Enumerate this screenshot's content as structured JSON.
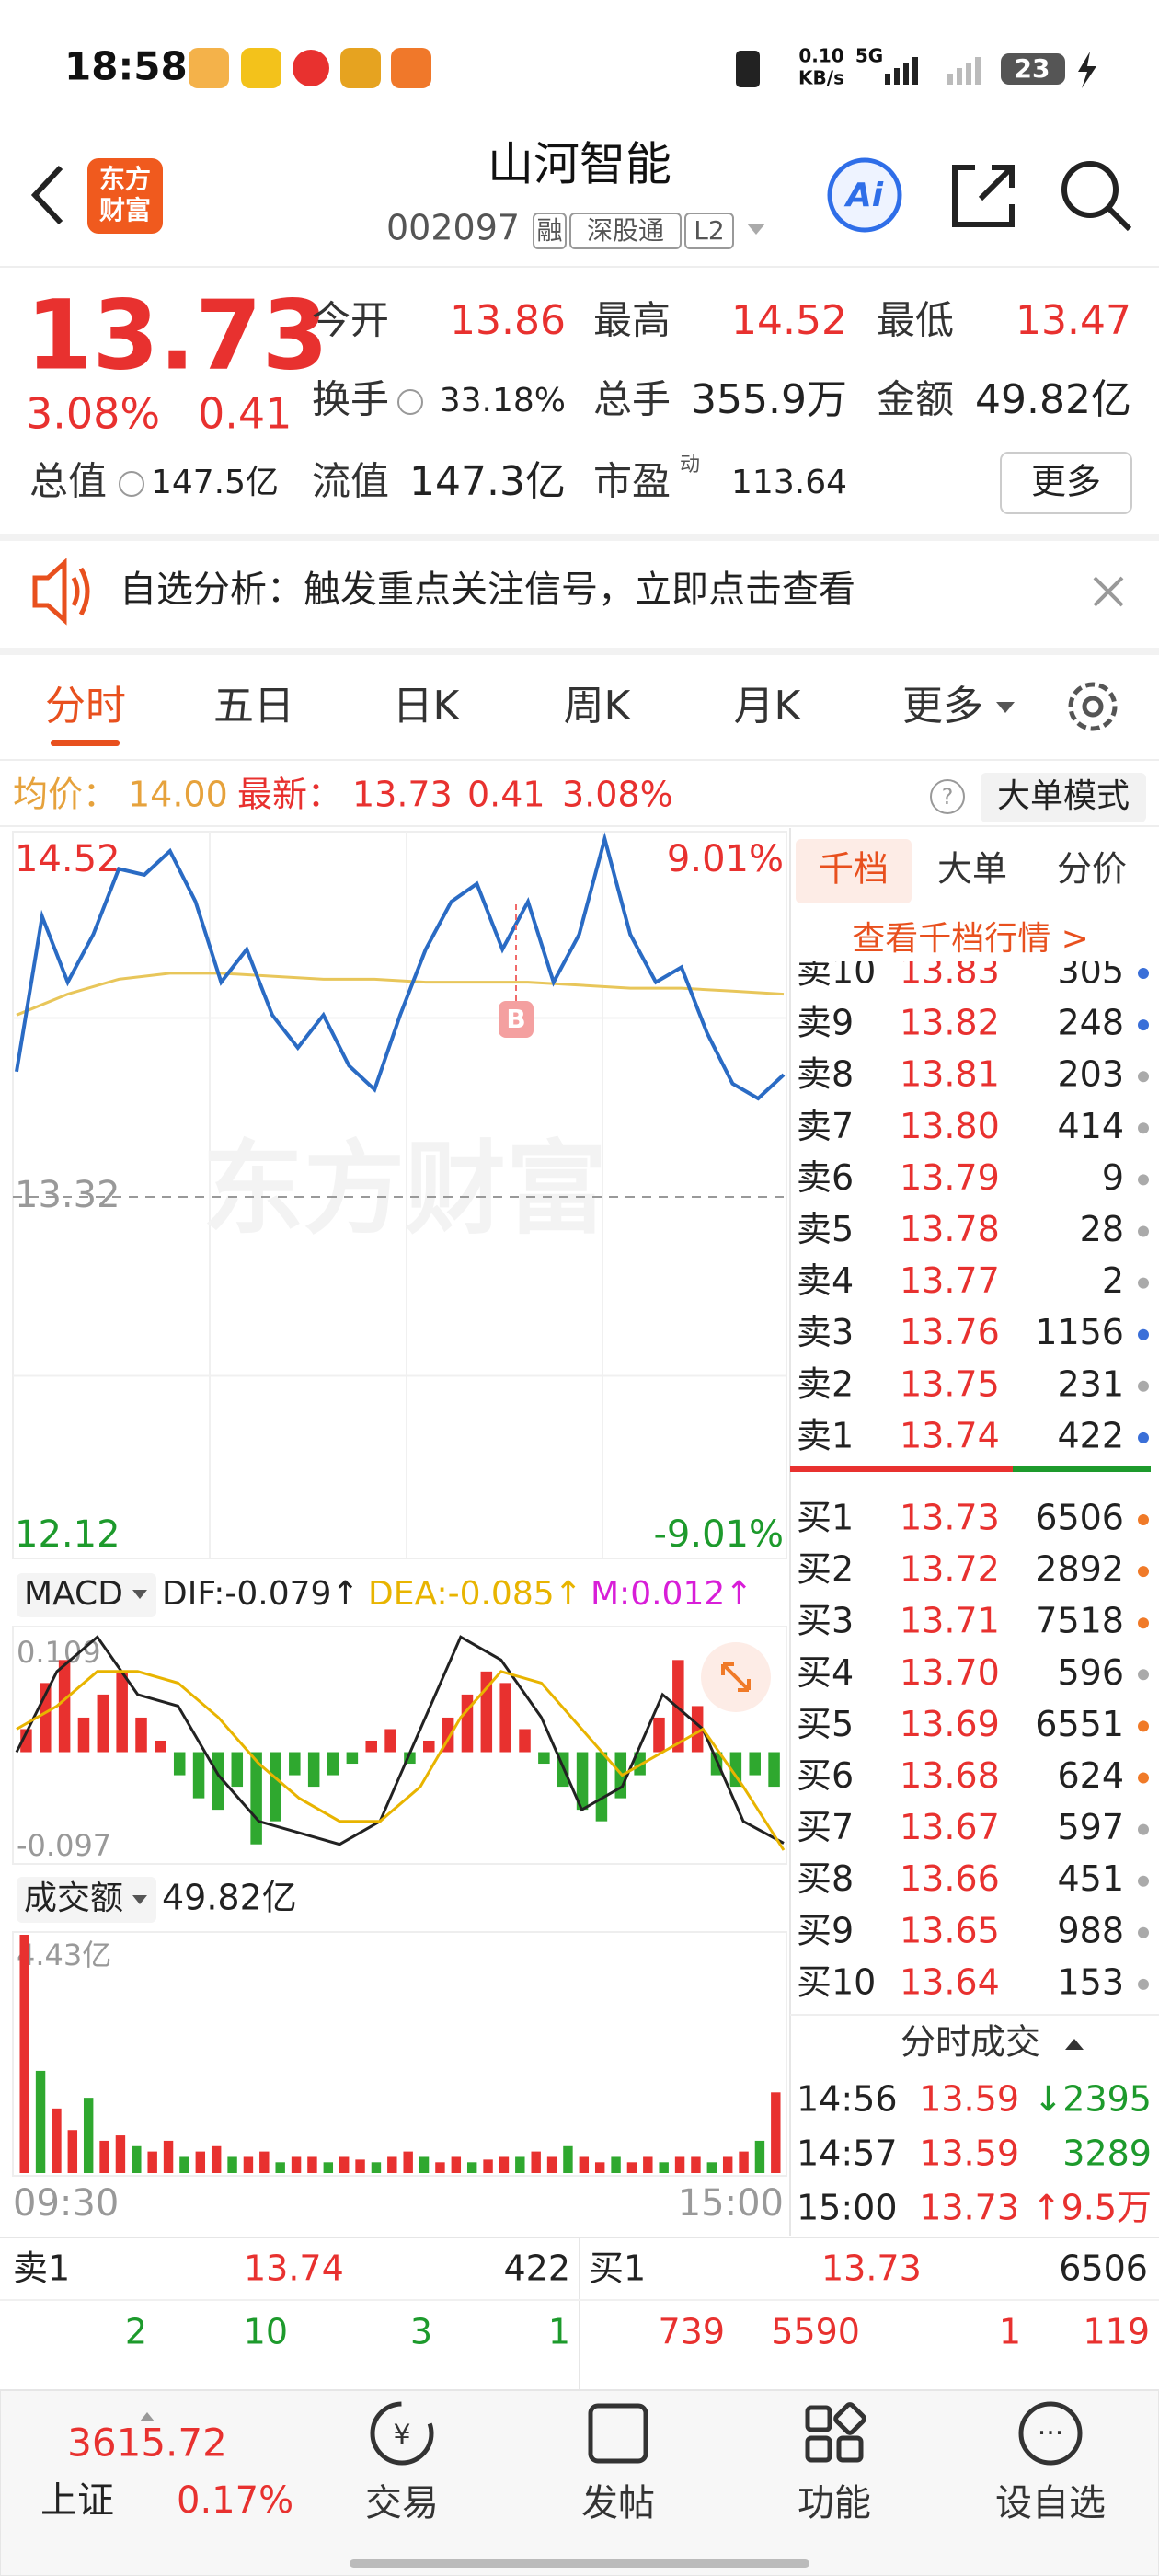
{
  "status_bar": {
    "time": "18:58",
    "net_speed": "0.10",
    "net_unit": "KB/s",
    "network": "5G",
    "battery": "23"
  },
  "header": {
    "logo_top": "东方",
    "logo_bottom": "财富",
    "title": "山河智能",
    "code": "002097",
    "tags": [
      "融",
      "深股通",
      "L2"
    ],
    "ai": "Ai"
  },
  "quote": {
    "price": "13.73",
    "change_pct": "3.08%",
    "change": "0.41",
    "color": "#e8312f",
    "fields": [
      {
        "label": "今开",
        "value": "13.86",
        "color": "#e8312f"
      },
      {
        "label": "最高",
        "value": "14.52",
        "color": "#e8312f"
      },
      {
        "label": "最低",
        "value": "13.47",
        "color": "#e8312f"
      },
      {
        "label": "换手",
        "value": "33.18%"
      },
      {
        "label": "总手",
        "value": "355.9万"
      },
      {
        "label": "金额",
        "value": "49.82亿"
      },
      {
        "label": "总值",
        "value": "147.5亿"
      },
      {
        "label": "流值",
        "value": "147.3亿"
      },
      {
        "label": "市盈",
        "sup": "动",
        "value": "113.64"
      }
    ],
    "more": "更多"
  },
  "banner": "自选分析：触发重点关注信号，立即点击查看",
  "tabs": {
    "items": [
      "分时",
      "五日",
      "日K",
      "周K",
      "月K",
      "更多"
    ],
    "active": 0
  },
  "info": {
    "avg_label": "均价：",
    "avg": "14.00",
    "last_label": "最新：",
    "last": "13.73",
    "change": "0.41",
    "change_pct": "3.08%",
    "mode": "大单模式"
  },
  "price_chart": {
    "ylim": [
      12.12,
      14.52
    ],
    "yticks": [
      12.12,
      13.32,
      14.52
    ],
    "pct_top": "9.01%",
    "pct_bottom": "-9.01%",
    "watermark": "东方财富",
    "marker": "B",
    "line_color": "#2a6bc4",
    "avg_color": "#e8c65a",
    "prices": [
      13.74,
      14.26,
      14.04,
      14.2,
      14.42,
      14.4,
      14.48,
      14.31,
      14.04,
      14.15,
      13.93,
      13.82,
      13.93,
      13.76,
      13.68,
      13.93,
      14.15,
      14.31,
      14.37,
      14.15,
      14.31,
      14.04,
      14.2,
      14.52,
      14.2,
      14.04,
      14.09,
      13.87,
      13.7,
      13.65,
      13.73
    ],
    "avg": [
      13.93,
      14.0,
      14.05,
      14.07,
      14.07,
      14.06,
      14.05,
      14.05,
      14.04,
      14.04,
      14.04,
      14.03,
      14.02,
      14.02,
      14.01,
      14.0
    ],
    "x_start": "09:30",
    "x_end": "15:00"
  },
  "macd": {
    "label": "MACD",
    "dif": "DIF:-0.079↑",
    "dea": "DEA:-0.085↑",
    "m": "M:0.012↑",
    "ylim": [
      -0.097,
      0.109
    ],
    "dif_color": "#222222",
    "dea_color": "#e8b400",
    "m_color": "#d81ed8",
    "hist": [
      0.02,
      0.06,
      0.08,
      0.03,
      0.05,
      0.07,
      0.03,
      0.01,
      -0.02,
      -0.04,
      -0.05,
      -0.03,
      -0.08,
      -0.06,
      -0.02,
      -0.03,
      -0.02,
      -0.01,
      0.01,
      0.02,
      -0.01,
      0.01,
      0.03,
      0.05,
      0.07,
      0.06,
      0.02,
      -0.01,
      -0.03,
      -0.05,
      -0.06,
      -0.04,
      -0.02,
      0.03,
      0.08,
      0.04,
      -0.02,
      -0.03,
      -0.02,
      -0.03
    ],
    "dif_line": [
      0.0,
      0.07,
      0.1,
      0.05,
      0.04,
      -0.02,
      -0.06,
      -0.07,
      -0.08,
      -0.06,
      0.02,
      0.1,
      0.08,
      0.03,
      -0.05,
      -0.03,
      0.05,
      0.02,
      -0.06,
      -0.079
    ],
    "dea_line": [
      0.02,
      0.04,
      0.07,
      0.07,
      0.06,
      0.03,
      -0.01,
      -0.04,
      -0.06,
      -0.06,
      -0.03,
      0.03,
      0.07,
      0.06,
      0.02,
      -0.02,
      0.0,
      0.02,
      -0.03,
      -0.085
    ]
  },
  "volume": {
    "label": "成交额",
    "total": "49.82亿",
    "ylim": [
      0,
      4.43
    ],
    "top_label": "4.43亿",
    "bars": [
      4.43,
      1.9,
      1.2,
      0.8,
      1.4,
      0.6,
      0.7,
      0.5,
      0.4,
      0.6,
      0.3,
      0.4,
      0.5,
      0.3,
      0.3,
      0.4,
      0.2,
      0.3,
      0.3,
      0.2,
      0.3,
      0.25,
      0.2,
      0.3,
      0.4,
      0.3,
      0.2,
      0.3,
      0.2,
      0.25,
      0.3,
      0.3,
      0.4,
      0.3,
      0.5,
      0.3,
      0.2,
      0.3,
      0.2,
      0.3,
      0.2,
      0.3,
      0.3,
      0.2,
      0.3,
      0.4,
      0.6,
      1.5
    ]
  },
  "order_book": {
    "tabs": [
      "千档",
      "大单",
      "分价"
    ],
    "link": "查看千档行情 >",
    "asks": [
      {
        "level": "卖10",
        "price": "13.83",
        "volume": "305",
        "dot": "#3a6fd8"
      },
      {
        "level": "卖9",
        "price": "13.82",
        "volume": "248",
        "dot": "#3a6fd8"
      },
      {
        "level": "卖8",
        "price": "13.81",
        "volume": "203",
        "dot": "#aaaaaa"
      },
      {
        "level": "卖7",
        "price": "13.80",
        "volume": "414",
        "dot": "#aaaaaa"
      },
      {
        "level": "卖6",
        "price": "13.79",
        "volume": "9",
        "dot": "#aaaaaa"
      },
      {
        "level": "卖5",
        "price": "13.78",
        "volume": "28",
        "dot": "#aaaaaa"
      },
      {
        "level": "卖4",
        "price": "13.77",
        "volume": "2",
        "dot": "#aaaaaa"
      },
      {
        "level": "卖3",
        "price": "13.76",
        "volume": "1156",
        "dot": "#3a6fd8"
      },
      {
        "level": "卖2",
        "price": "13.75",
        "volume": "231",
        "dot": "#aaaaaa"
      },
      {
        "level": "卖1",
        "price": "13.74",
        "volume": "422",
        "dot": "#3a6fd8"
      }
    ],
    "bids": [
      {
        "level": "买1",
        "price": "13.73",
        "volume": "6506",
        "dot": "#f07a28"
      },
      {
        "level": "买2",
        "price": "13.72",
        "volume": "2892",
        "dot": "#f07a28"
      },
      {
        "level": "买3",
        "price": "13.71",
        "volume": "7518",
        "dot": "#f07a28"
      },
      {
        "level": "买4",
        "price": "13.70",
        "volume": "596",
        "dot": "#aaaaaa"
      },
      {
        "level": "买5",
        "price": "13.69",
        "volume": "6551",
        "dot": "#f07a28"
      },
      {
        "level": "买6",
        "price": "13.68",
        "volume": "624",
        "dot": "#f07a28"
      },
      {
        "level": "买7",
        "price": "13.67",
        "volume": "597",
        "dot": "#aaaaaa"
      },
      {
        "level": "买8",
        "price": "13.66",
        "volume": "451",
        "dot": "#aaaaaa"
      },
      {
        "level": "买9",
        "price": "13.65",
        "volume": "988",
        "dot": "#aaaaaa"
      },
      {
        "level": "买10",
        "price": "13.64",
        "volume": "153",
        "dot": "#aaaaaa"
      }
    ]
  },
  "trades": {
    "title": "分时成交",
    "rows": [
      {
        "time": "14:56",
        "price": "13.59",
        "dir": "↓",
        "volume": "2395",
        "color": "#1d9a2c"
      },
      {
        "time": "14:57",
        "price": "13.59",
        "volume": "3289",
        "color": "#1d9a2c"
      },
      {
        "time": "15:00",
        "price": "13.73",
        "dir": "↑",
        "volume": "9.5万",
        "color": "#e8312f"
      }
    ]
  },
  "bottom_table": {
    "left": {
      "label": "卖1",
      "price": "13.74",
      "volume": "422",
      "row2": [
        "2",
        "10",
        "3",
        "1"
      ]
    },
    "right": {
      "label": "买1",
      "price": "13.73",
      "volume": "6506",
      "row2": [
        "739",
        "5590",
        "1",
        "119"
      ]
    }
  },
  "nav": {
    "index_value": "3615.72",
    "index_name": "上证",
    "index_change": "0.17%",
    "items": [
      "交易",
      "发帖",
      "功能",
      "设自选"
    ]
  }
}
